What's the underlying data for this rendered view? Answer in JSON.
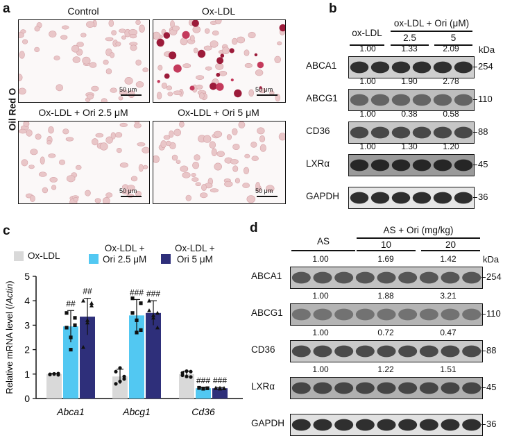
{
  "panel_a": {
    "label": "a",
    "side_label": "Oil Red O",
    "tiles": [
      {
        "title": "Control",
        "scale": "50 μm"
      },
      {
        "title": "Ox-LDL",
        "scale": "50 μm"
      },
      {
        "title": "Ox-LDL + Ori 2.5 μM",
        "scale": "50 μm"
      },
      {
        "title": "Ox-LDL + Ori 5 μM",
        "scale": "50 μm"
      }
    ]
  },
  "panel_b": {
    "label": "b",
    "groups": {
      "control": "ox-LDL",
      "treat": "ox-LDL + Ori (μM)",
      "dose1": "2.5",
      "dose2": "5"
    },
    "kda_header": "kDa",
    "blots": [
      {
        "protein": "ABCA1",
        "kda": "254",
        "values": [
          "1.00",
          "1.33",
          "2.09"
        ]
      },
      {
        "protein": "ABCG1",
        "kda": "110",
        "values": [
          "1.00",
          "1.90",
          "2.78"
        ]
      },
      {
        "protein": "CD36",
        "kda": "88",
        "values": [
          "1.00",
          "0.38",
          "0.58"
        ]
      },
      {
        "protein": "LXRα",
        "kda": "45",
        "values": [
          "1.00",
          "1.30",
          "1.20"
        ]
      },
      {
        "protein": "GAPDH",
        "kda": "36",
        "values": []
      }
    ]
  },
  "panel_c": {
    "label": "c",
    "legend": [
      "Ox-LDL",
      "Ox-LDL +\nOri 2.5 μM",
      "Ox-LDL +\nOri 5 μM"
    ],
    "ylabel_prefix": "Relative mRNA level (/",
    "ylabel_italic": "Actin",
    "ylabel_suffix": ")"
  },
  "chart_data": {
    "type": "bar",
    "categories": [
      "Abca1",
      "Abcg1",
      "Cd36"
    ],
    "ylim": [
      0,
      5
    ],
    "yticks": [
      "0",
      "1",
      "2",
      "3",
      "4",
      "5"
    ],
    "series": [
      {
        "name": "Ox-LDL",
        "color": "#d9d9d9",
        "values": [
          1.0,
          0.9,
          1.0
        ],
        "errors": [
          0.03,
          0.3,
          0.12
        ],
        "points": [
          [
            0.98,
            1.0,
            1.02,
            0.99,
            1.01,
            0.97
          ],
          [
            0.6,
            0.7,
            0.9,
            1.1,
            1.25,
            0.8
          ],
          [
            1.05,
            0.9,
            1.1,
            0.95,
            1.12,
            0.88
          ]
        ],
        "marker": "circle"
      },
      {
        "name": "Ox-LDL + Ori 2.5 μM",
        "color": "#52c8f2",
        "values": [
          2.95,
          3.4,
          0.42
        ],
        "errors": [
          0.65,
          0.65,
          0.03
        ],
        "points": [
          [
            3.5,
            2.5,
            3.0,
            2.9,
            2.0,
            3.3
          ],
          [
            4.1,
            3.2,
            2.8,
            3.5,
            2.7,
            3.9
          ],
          [
            0.44,
            0.4,
            0.42,
            0.43,
            0.41,
            0.42
          ]
        ],
        "marker": "square",
        "annotations": [
          "##",
          "###",
          "###"
        ]
      },
      {
        "name": "Ox-LDL + Ori 5 μM",
        "color": "#2e2f7a",
        "values": [
          3.35,
          3.5,
          0.42
        ],
        "errors": [
          0.75,
          0.5,
          0.03
        ],
        "points": [
          [
            4.0,
            3.1,
            3.8,
            2.1,
            3.2,
            3.9
          ],
          [
            4.0,
            3.3,
            2.9,
            3.6,
            3.4,
            3.5
          ],
          [
            0.43,
            0.4,
            0.41,
            0.42,
            0.43,
            0.42
          ]
        ],
        "marker": "triangle",
        "annotations": [
          "##",
          "###",
          "###"
        ]
      }
    ]
  },
  "panel_d": {
    "label": "d",
    "groups": {
      "control": "AS",
      "treat": "AS + Ori (mg/kg)",
      "dose1": "10",
      "dose2": "20"
    },
    "kda_header": "kDa",
    "blots": [
      {
        "protein": "ABCA1",
        "kda": "254",
        "values": [
          "1.00",
          "1.69",
          "1.42"
        ]
      },
      {
        "protein": "ABCG1",
        "kda": "110",
        "values": [
          "1.00",
          "1.88",
          "3.21"
        ]
      },
      {
        "protein": "CD36",
        "kda": "88",
        "values": [
          "1.00",
          "0.72",
          "0.47"
        ]
      },
      {
        "protein": "LXRα",
        "kda": "45",
        "values": [
          "1.00",
          "1.22",
          "1.51"
        ]
      },
      {
        "protein": "GAPDH",
        "kda": "36",
        "values": []
      }
    ]
  }
}
